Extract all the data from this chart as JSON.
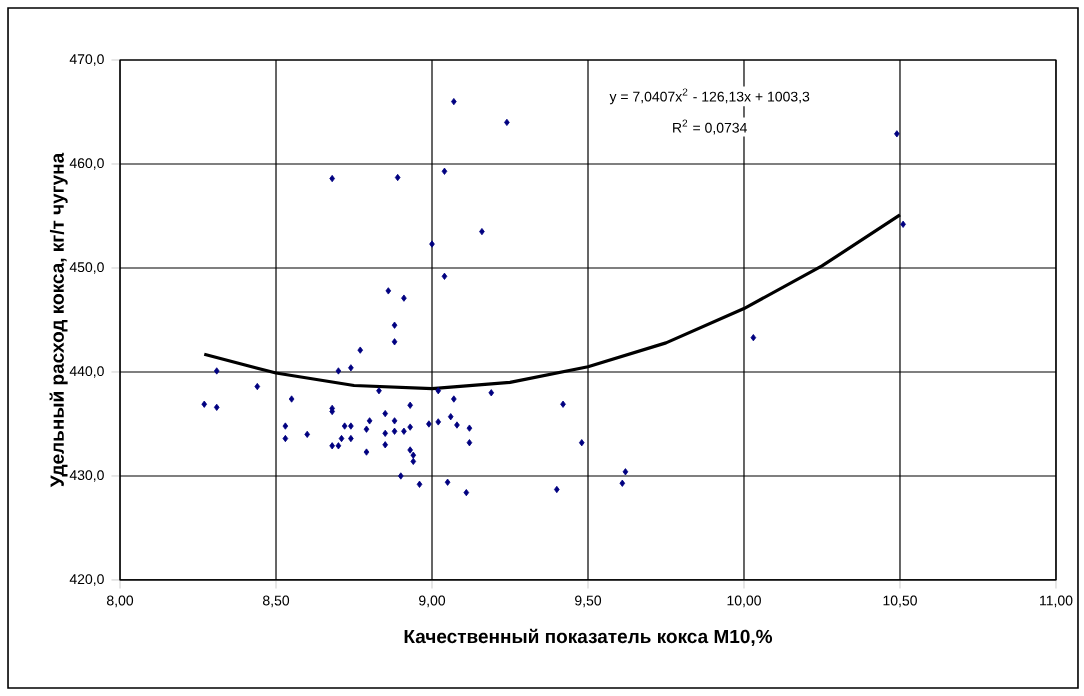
{
  "chart_data": {
    "type": "scatter",
    "xlabel": "Качественный показатель кокса М10,%",
    "ylabel": "Удельный расход кокса, кг/т чугуна",
    "annotations": [
      "y = 7,0407x$^{2}$ - 126,13x + 1003,3",
      "R$^{2}$ = 0,0734"
    ],
    "grid": true,
    "xlim": [
      8,
      11
    ],
    "ylim": [
      420,
      470
    ],
    "xticks": [
      {
        "value": 8,
        "label": "8,00"
      },
      {
        "value": 8.5,
        "label": "8,50"
      },
      {
        "value": 9,
        "label": "9,00"
      },
      {
        "value": 9.5,
        "label": "9,50"
      },
      {
        "value": 10,
        "label": "10,00"
      },
      {
        "value": 10.5,
        "label": "10,50"
      },
      {
        "value": 11,
        "label": "11,00"
      }
    ],
    "yticks": [
      {
        "value": 420,
        "label": "420,0"
      },
      {
        "value": 430,
        "label": "430,0"
      },
      {
        "value": 440,
        "label": "440,0"
      },
      {
        "value": 450,
        "label": "450,0"
      },
      {
        "value": 460,
        "label": "460,0"
      },
      {
        "value": 470,
        "label": "470,0"
      }
    ],
    "series": [
      {
        "marker": "diamond",
        "color": "#000080",
        "x": [
          8.27,
          8.31,
          8.31,
          8.44,
          8.53,
          8.53,
          8.55,
          8.6,
          8.68,
          8.68,
          8.68,
          8.68,
          8.7,
          8.7,
          8.71,
          8.72,
          8.74,
          8.74,
          8.74,
          8.77,
          8.79,
          8.79,
          8.8,
          8.83,
          8.85,
          8.85,
          8.85,
          8.86,
          8.88,
          8.88,
          8.88,
          8.88,
          8.89,
          8.91,
          8.9,
          8.91,
          8.93,
          8.93,
          8.93,
          8.94,
          8.94,
          8.96,
          8.99,
          9.0,
          9.02,
          9.02,
          9.04,
          9.04,
          9.05,
          9.06,
          9.07,
          9.07,
          9.08,
          9.11,
          9.12,
          9.12,
          9.16,
          9.19,
          9.24,
          9.42,
          9.4,
          9.48,
          9.61,
          9.62,
          10.03,
          10.49,
          10.51
        ],
        "values": [
          436.9,
          440.1,
          436.6,
          438.6,
          434.8,
          433.6,
          437.4,
          434.0,
          458.6,
          436.5,
          436.2,
          432.9,
          432.9,
          440.1,
          433.6,
          434.8,
          434.8,
          433.6,
          440.4,
          442.1,
          432.3,
          434.5,
          435.3,
          438.2,
          436.0,
          434.1,
          433.0,
          447.8,
          444.5,
          442.9,
          435.3,
          434.3,
          458.7,
          447.1,
          430.0,
          434.3,
          432.5,
          436.8,
          434.7,
          432.0,
          431.4,
          429.2,
          435.0,
          452.3,
          435.2,
          438.2,
          449.2,
          459.3,
          429.4,
          435.7,
          466.0,
          437.4,
          434.9,
          428.4,
          434.6,
          433.2,
          453.5,
          438.0,
          464.0,
          436.9,
          428.7,
          433.2,
          429.3,
          430.4,
          443.3,
          462.9,
          454.2
        ]
      },
      {
        "type": "line",
        "color": "#000000",
        "x": [
          8.27,
          8.5,
          8.75,
          9.0,
          9.25,
          9.5,
          9.75,
          10.0,
          10.25,
          10.5
        ],
        "values": [
          441.7,
          439.9,
          438.7,
          438.4,
          439.0,
          440.5,
          442.8,
          446.1,
          450.2,
          455.1
        ]
      }
    ]
  }
}
